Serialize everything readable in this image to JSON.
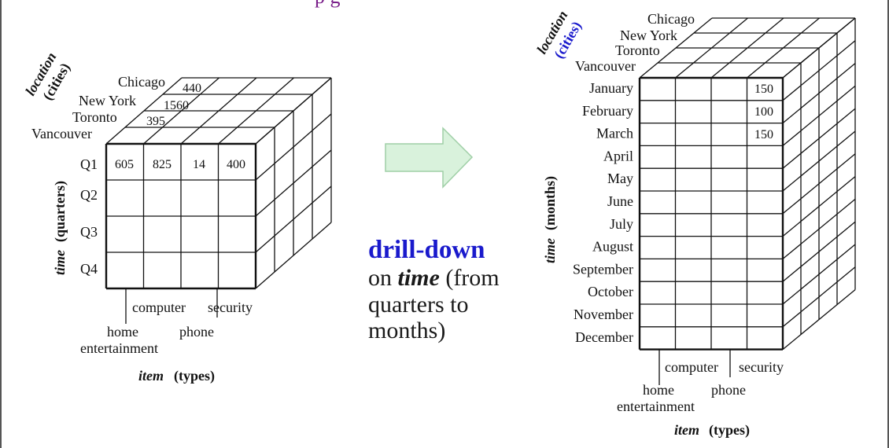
{
  "header_fragment": "p                    g",
  "left_cube": {
    "cities": [
      "Chicago",
      "New York",
      "Toronto",
      "Vancouver"
    ],
    "back_values": [
      "440",
      "1560",
      "395"
    ],
    "quarters": [
      "Q1",
      "Q2",
      "Q3",
      "Q4"
    ],
    "q1_values": [
      "605",
      "825",
      "14",
      "400"
    ],
    "items_top": [
      "computer",
      "security"
    ],
    "items_bottom": [
      "home",
      "phone"
    ],
    "items_bottom2": "entertainment",
    "location_axis": "location",
    "cities_sub": "(cities)",
    "time_axis": "time",
    "time_sub": "(quarters)",
    "item_axis": "item",
    "item_sub": "(types)"
  },
  "caption": {
    "title": "drill-down",
    "line1_pre": "on ",
    "line1_em": "time",
    "line1_post": " (from",
    "line2": "quarters to",
    "line3": "months)"
  },
  "right_cube": {
    "cities": [
      "Chicago",
      "New York",
      "Toronto",
      "Vancouver"
    ],
    "months": [
      "January",
      "February",
      "March",
      "April",
      "May",
      "June",
      "July",
      "August",
      "September",
      "October",
      "November",
      "December"
    ],
    "security_values": [
      "150",
      "100",
      "150"
    ],
    "items_top": [
      "computer",
      "security"
    ],
    "items_bottom": [
      "home",
      "phone"
    ],
    "items_bottom2": "entertainment",
    "location_axis": "location",
    "cities_sub": "(cities)",
    "time_axis": "time",
    "time_sub": "(months)",
    "item_axis": "item",
    "item_sub": "(types)"
  },
  "colors": {
    "arrow_fill": "#d9f2dc",
    "arrow_stroke": "#9fcfa6",
    "accent_blue": "#1a1acc",
    "header_purple": "#7a1f8a"
  }
}
